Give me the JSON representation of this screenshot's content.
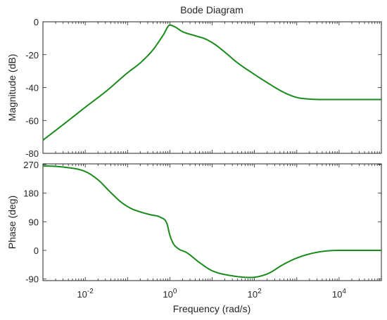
{
  "chart_data": {
    "type": "line",
    "title": "Bode Diagram",
    "xlabel": "Frequency  (rad/s)",
    "xscale": "log",
    "xlim": [
      0.001,
      100000
    ],
    "xticks": [
      {
        "value": 0.01,
        "base": "10",
        "exp": "-2"
      },
      {
        "value": 1,
        "base": "10",
        "exp": "0"
      },
      {
        "value": 100,
        "base": "10",
        "exp": "2"
      },
      {
        "value": 10000,
        "base": "10",
        "exp": "4"
      }
    ],
    "grid": false,
    "color": "#1a8a1a",
    "panels": [
      {
        "name": "magnitude",
        "ylabel": "Magnitude (dB)",
        "ylim": [
          -80,
          0
        ],
        "yticks": [
          "0",
          "-20",
          "-40",
          "-60",
          "-80"
        ],
        "ytick_values": [
          0,
          -20,
          -40,
          -60,
          -80
        ],
        "x": [
          0.001,
          0.0032,
          0.01,
          0.032,
          0.1,
          0.2,
          0.4,
          0.7,
          1.0,
          1.3,
          2,
          4,
          7,
          12,
          20,
          40,
          100,
          200,
          500,
          1000,
          2000,
          5000,
          100000
        ],
        "y": [
          -72,
          -62,
          -52,
          -42,
          -31,
          -25,
          -17,
          -8,
          -2,
          -3,
          -6,
          -8.5,
          -10.5,
          -14,
          -18.5,
          -25,
          -32,
          -37,
          -43,
          -46,
          -47,
          -47.3,
          -47.3
        ]
      },
      {
        "name": "phase",
        "ylabel": "Phase (deg)",
        "ylim": [
          -95,
          272
        ],
        "yticks": [
          "270",
          "180",
          "90",
          "0",
          "-90"
        ],
        "ytick_values": [
          270,
          180,
          90,
          0,
          -90
        ],
        "x": [
          0.001,
          0.003,
          0.01,
          0.02,
          0.04,
          0.07,
          0.12,
          0.2,
          0.35,
          0.6,
          0.85,
          1.0,
          1.2,
          1.6,
          2.5,
          5,
          10,
          30,
          80,
          200,
          500,
          1000,
          3000,
          10000,
          100000
        ],
        "y": [
          266,
          262,
          248,
          222,
          182,
          152,
          132,
          121,
          112,
          104,
          85,
          48,
          22,
          5,
          -7,
          -38,
          -64,
          -80,
          -85,
          -74,
          -43,
          -24,
          -6,
          0,
          0
        ]
      }
    ]
  }
}
